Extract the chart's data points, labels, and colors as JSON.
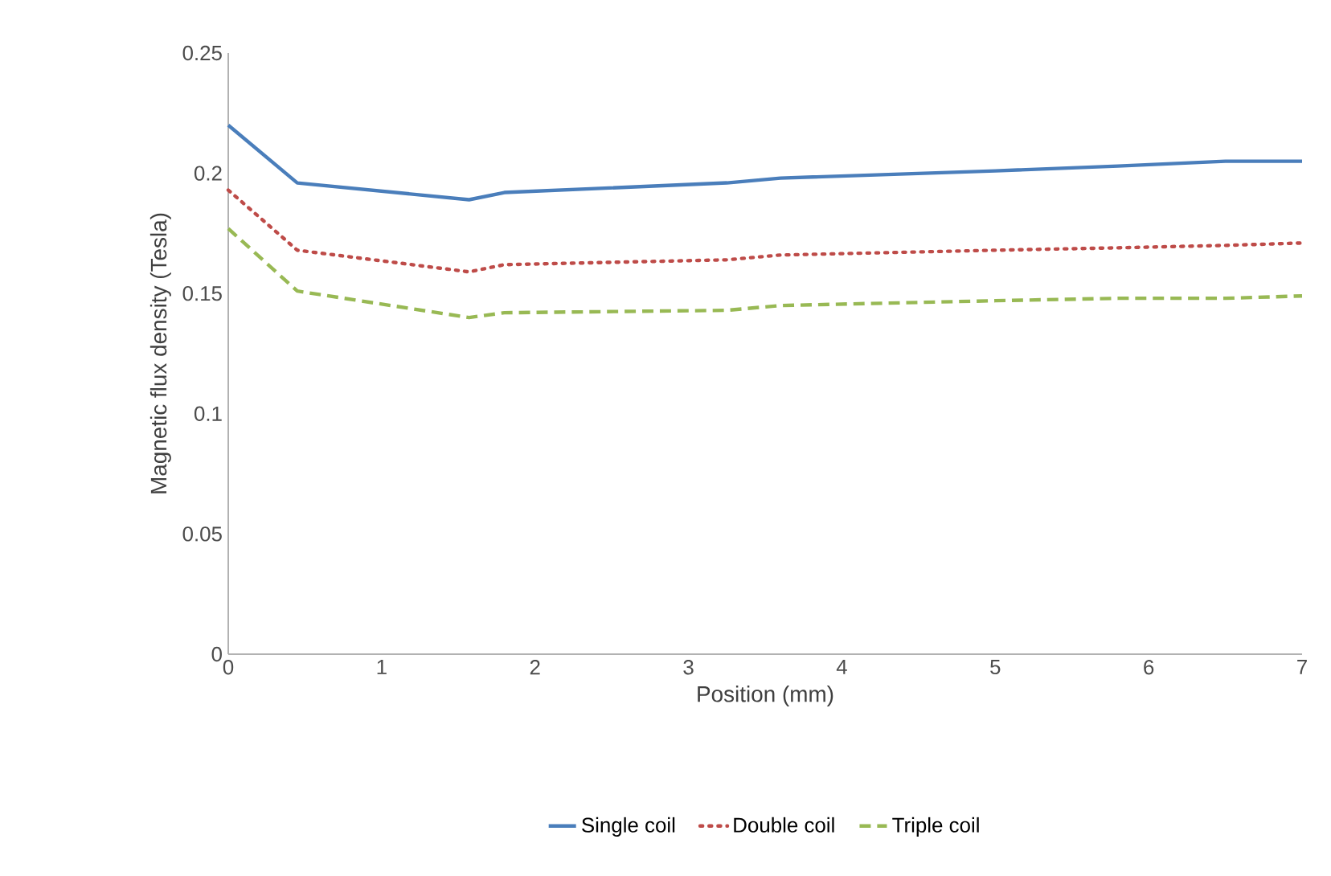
{
  "chart_data": {
    "type": "line",
    "xlabel": "Position (mm)",
    "ylabel": "Magnetic flux density (Tesla)",
    "x": [
      0,
      0.45,
      1.57,
      1.8,
      3.25,
      3.6,
      5,
      5.8,
      6.5,
      7
    ],
    "series": [
      {
        "name": "Single coil",
        "color": "#4a7ebb",
        "line_style": "solid",
        "values": [
          0.22,
          0.196,
          0.189,
          0.192,
          0.196,
          0.198,
          0.201,
          0.203,
          0.205,
          0.205
        ]
      },
      {
        "name": "Double coil",
        "color": "#be4b48",
        "line_style": "dotted",
        "values": [
          0.193,
          0.168,
          0.159,
          0.162,
          0.164,
          0.166,
          0.168,
          0.169,
          0.17,
          0.171
        ]
      },
      {
        "name": "Triple coil",
        "color": "#98b954",
        "line_style": "dashed",
        "values": [
          0.177,
          0.151,
          0.14,
          0.142,
          0.143,
          0.145,
          0.147,
          0.148,
          0.148,
          0.149
        ]
      }
    ],
    "xlim": [
      0,
      7
    ],
    "xticks": [
      0,
      1,
      2,
      3,
      4,
      5,
      6,
      7
    ],
    "ylim": [
      0,
      0.25
    ],
    "yticks": [
      0,
      0.05,
      0.1,
      0.15,
      0.2,
      0.25
    ],
    "grid": false,
    "legend": "bottom",
    "marker": "none"
  }
}
